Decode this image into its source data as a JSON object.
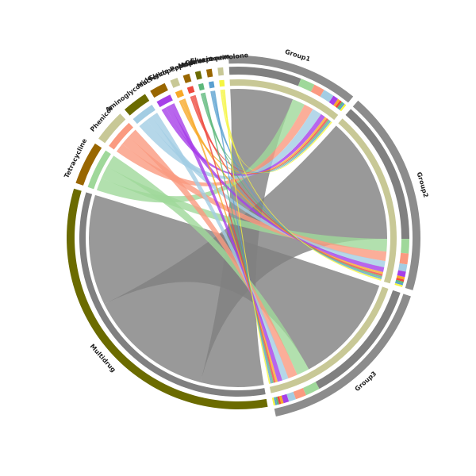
{
  "chart_data": {
    "type": "chord",
    "groups": [
      {
        "name": "Group1",
        "color": "#8c8c8c"
      },
      {
        "name": "Group2",
        "color": "#8c8c8c"
      },
      {
        "name": "Group3",
        "color": "#8c8c8c"
      }
    ],
    "sources": [
      {
        "name": "Multidrug",
        "color": "#808080",
        "ring_color": "#6b6b00",
        "values": [
          20,
          40,
          35
        ]
      },
      {
        "name": "Tetracycline",
        "color": "#9fd89a",
        "ring_color": "#996600",
        "values": [
          4,
          4,
          4
        ]
      },
      {
        "name": "Phenicol",
        "color": "#fa9a80",
        "ring_color": "#c8c896",
        "values": [
          3,
          3,
          3
        ]
      },
      {
        "name": "Aminoglycoside",
        "color": "#a3cde3",
        "ring_color": "#6b6b00",
        "values": [
          3,
          2,
          2
        ]
      },
      {
        "name": "Macrolide",
        "color": "#a63fe8",
        "ring_color": "#996600",
        "values": [
          1.5,
          1.5,
          1.5
        ]
      },
      {
        "name": "Glycopeptide",
        "color": "#f7a928",
        "ring_color": "#c8c896",
        "values": [
          0.7,
          0.7,
          0.7
        ]
      },
      {
        "name": "Peptide",
        "color": "#ee4a3e",
        "ring_color": "#996600",
        "values": [
          0.6,
          0.6,
          0.6
        ]
      },
      {
        "name": "Mupirocin",
        "color": "#5cb87a",
        "ring_color": "#6b6b00",
        "values": [
          0.5,
          0.5,
          0.5
        ]
      },
      {
        "name": "Carbapenem",
        "color": "#5aa0d0",
        "ring_color": "#996600",
        "values": [
          0.5,
          0.5,
          0.5
        ]
      },
      {
        "name": "Fluoroquinolone",
        "color": "#f5f542",
        "ring_color": "#c8c896",
        "values": [
          0.5,
          0.5,
          0.5
        ]
      }
    ]
  }
}
